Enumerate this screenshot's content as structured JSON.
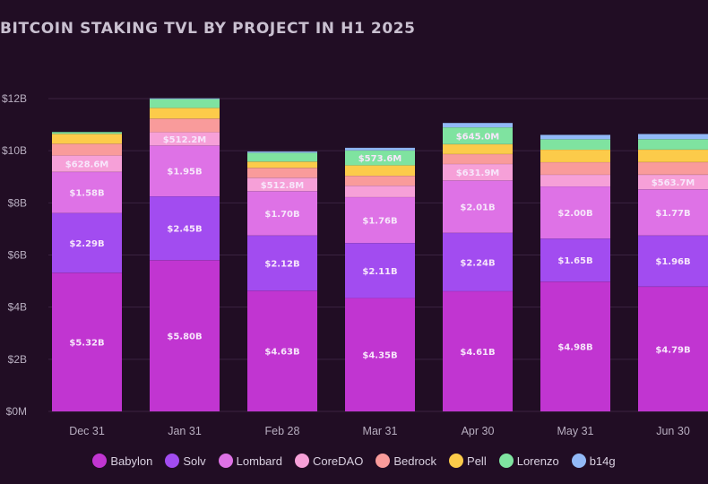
{
  "chart_data": {
    "type": "bar",
    "stacked": true,
    "title": "BITCOIN STAKING TVL BY PROJECT IN H1 2025",
    "xlabel": "",
    "ylabel": "",
    "ylim": [
      0,
      12
    ],
    "unit": "USD billions",
    "yticks": [
      {
        "value": 0,
        "label": "$0M"
      },
      {
        "value": 2,
        "label": "$2B"
      },
      {
        "value": 4,
        "label": "$4B"
      },
      {
        "value": 6,
        "label": "$6B"
      },
      {
        "value": 8,
        "label": "$8B"
      },
      {
        "value": 10,
        "label": "$10B"
      },
      {
        "value": 12,
        "label": "$12B"
      }
    ],
    "grid": true,
    "legend_position": "bottom",
    "categories": [
      "Dec 31",
      "Jan 31",
      "Feb 28",
      "Mar 31",
      "Apr 30",
      "May 31",
      "Jun 30"
    ],
    "series": [
      {
        "name": "Babylon",
        "color": "#c135d1",
        "values": [
          5.32,
          5.8,
          4.63,
          4.35,
          4.61,
          4.98,
          4.79
        ],
        "labels": [
          "$5.32B",
          "$5.80B",
          "$4.63B",
          "$4.35B",
          "$4.61B",
          "$4.98B",
          "$4.79B"
        ]
      },
      {
        "name": "Solv",
        "color": "#a24cf0",
        "values": [
          2.29,
          2.45,
          2.12,
          2.11,
          2.24,
          1.65,
          1.96
        ],
        "labels": [
          "$2.29B",
          "$2.45B",
          "$2.12B",
          "$2.11B",
          "$2.24B",
          "$1.65B",
          "$1.96B"
        ]
      },
      {
        "name": "Lombard",
        "color": "#de72e6",
        "values": [
          1.58,
          1.95,
          1.7,
          1.76,
          2.01,
          2.0,
          1.77
        ],
        "labels": [
          "$1.58B",
          "$1.95B",
          "$1.70B",
          "$1.76B",
          "$2.01B",
          "$2.00B",
          "$1.77B"
        ]
      },
      {
        "name": "CoreDAO",
        "color": "#f6a0d8",
        "values": [
          0.6286,
          0.5122,
          0.5128,
          0.44,
          0.6319,
          0.45,
          0.5637
        ],
        "labels": [
          "$628.6M",
          "$512.2M",
          "$512.8M",
          "",
          "$631.9M",
          "",
          "$563.7M"
        ]
      },
      {
        "name": "Bedrock",
        "color": "#f99b9b",
        "values": [
          0.45,
          0.52,
          0.38,
          0.38,
          0.38,
          0.48,
          0.48
        ],
        "labels": [
          "",
          "",
          "",
          "",
          "",
          "",
          ""
        ]
      },
      {
        "name": "Pell",
        "color": "#fccb4a",
        "values": [
          0.38,
          0.41,
          0.24,
          0.4,
          0.38,
          0.48,
          0.48
        ],
        "labels": [
          "",
          "",
          "",
          "",
          "",
          "",
          ""
        ]
      },
      {
        "name": "Lorenzo",
        "color": "#7fe3a0",
        "values": [
          0.07,
          0.34,
          0.34,
          0.5736,
          0.645,
          0.4,
          0.4
        ],
        "labels": [
          "",
          "",
          "",
          "$573.6M",
          "$645.0M",
          "",
          ""
        ]
      },
      {
        "name": "b14g",
        "color": "#92b9f7",
        "values": [
          0.0,
          0.03,
          0.05,
          0.1,
          0.17,
          0.17,
          0.2
        ],
        "labels": [
          "",
          "",
          "",
          "",
          "",
          "",
          ""
        ]
      }
    ]
  }
}
